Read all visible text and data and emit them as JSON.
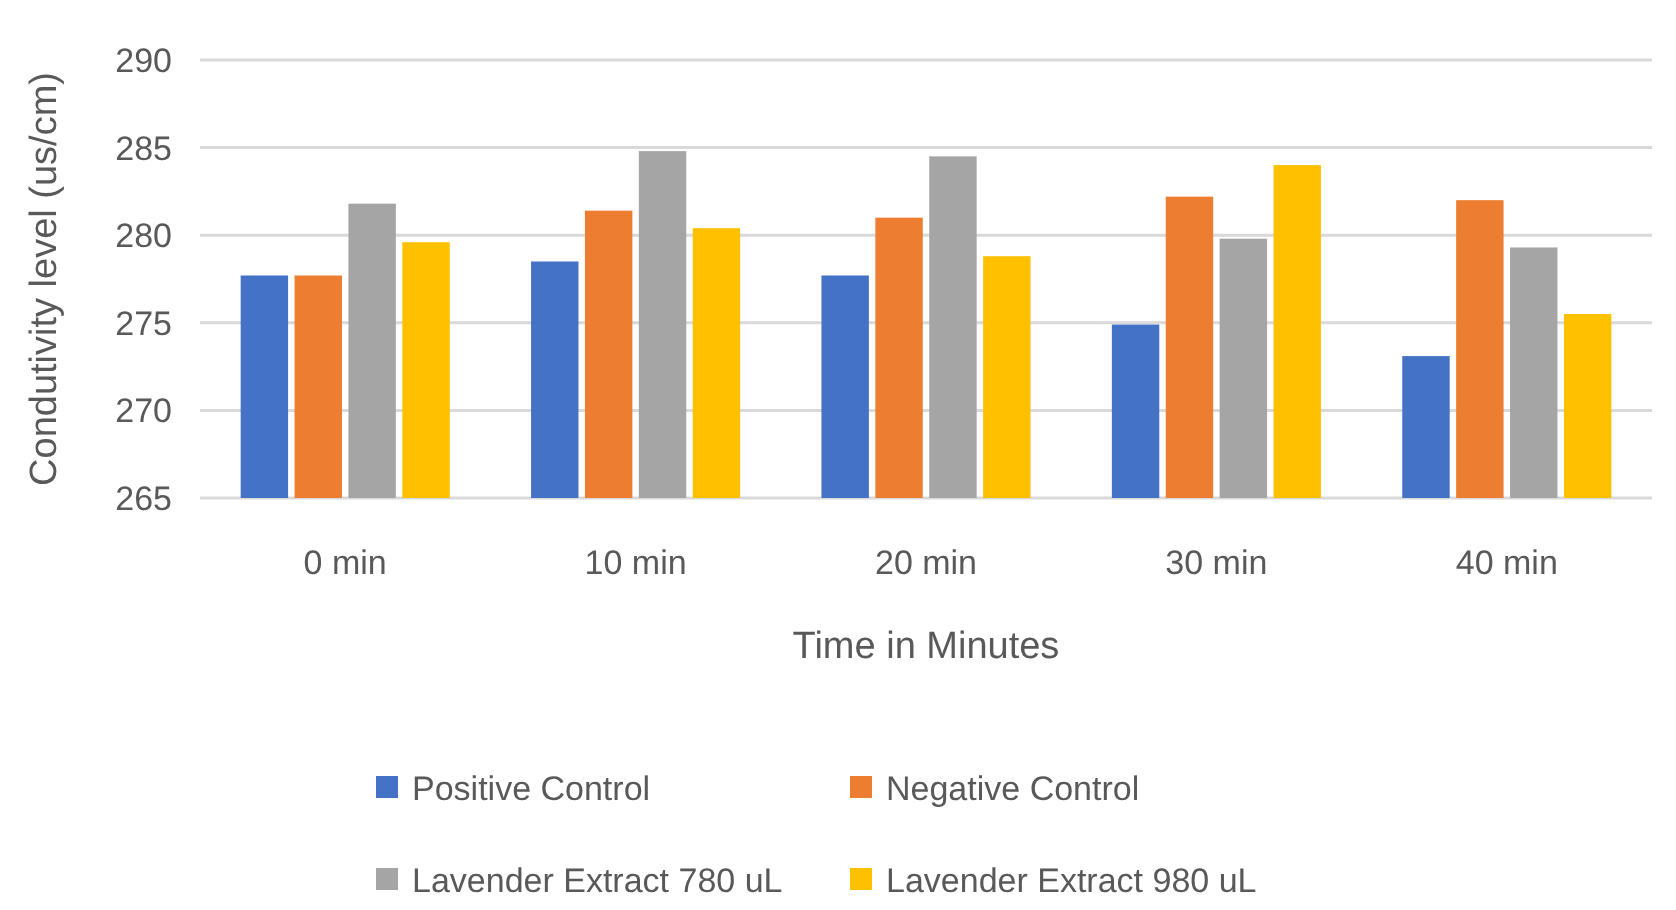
{
  "chart_data": {
    "type": "bar",
    "xlabel": "Time in Minutes",
    "ylabel": "Condutivity level (us/cm)",
    "categories": [
      "0 min",
      "10 min",
      "20 min",
      "30 min",
      "40 min"
    ],
    "series": [
      {
        "name": "Positive Control",
        "color": "#4472c4",
        "values": [
          277.7,
          278.5,
          277.7,
          274.9,
          273.1
        ]
      },
      {
        "name": "Negative Control",
        "color": "#ed7d31",
        "values": [
          277.7,
          281.4,
          281.0,
          282.2,
          282.0
        ]
      },
      {
        "name": "Lavender Extract 780 uL",
        "color": "#a5a5a5",
        "values": [
          281.8,
          284.8,
          284.5,
          279.8,
          279.3
        ]
      },
      {
        "name": "Lavender Extract 980 uL",
        "color": "#ffc000",
        "values": [
          279.6,
          280.4,
          278.8,
          284.0,
          275.5
        ]
      }
    ],
    "ylim": [
      265,
      290
    ],
    "yticks": [
      265,
      270,
      275,
      280,
      285,
      290
    ],
    "grid": "y",
    "legend": "bottom"
  }
}
